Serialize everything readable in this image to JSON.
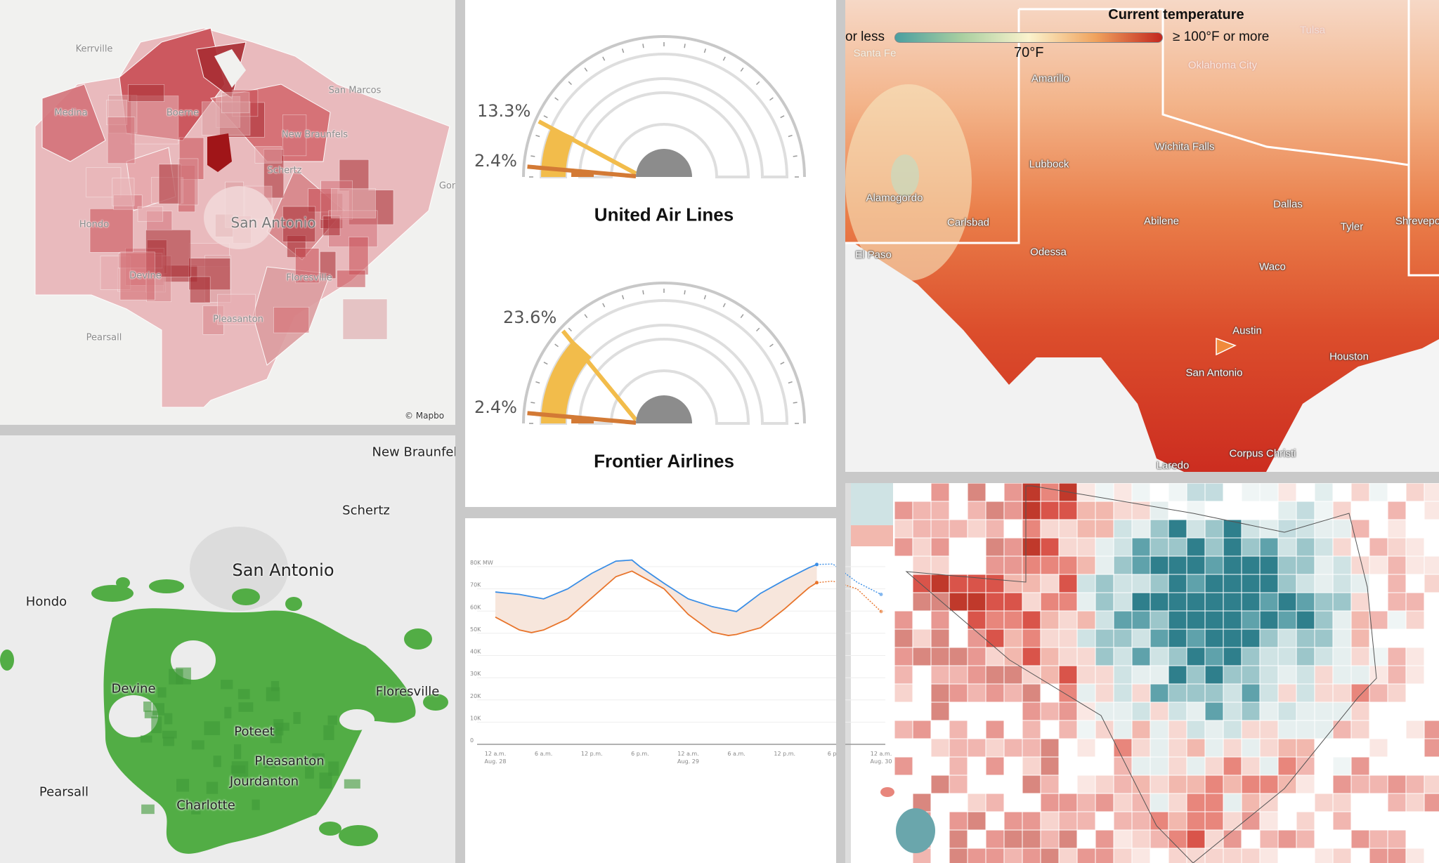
{
  "san_antonio_metro_map": {
    "labels": [
      "Kerrville",
      "Medina",
      "Boerne",
      "San Marcos",
      "New Braunfels",
      "Schertz",
      "San Antonio",
      "Hondo",
      "Devine",
      "Floresville",
      "Pleasanton",
      "Pearsall",
      "Gon"
    ],
    "attribution": "© Mapbo",
    "fill_color": "#c0393b"
  },
  "rain_map": {
    "labels": [
      "New Braunfel",
      "Schertz",
      "San Antonio",
      "Hondo",
      "Devine",
      "Floresville",
      "Poteet",
      "Pleasanton",
      "Jourdanton",
      "Charlotte",
      "Pearsall"
    ],
    "fill_color": "#4caf43"
  },
  "gauges": [
    {
      "title": "United Air Lines",
      "value_high": "13.3%",
      "value_low": "2.4%",
      "high": 13.3,
      "low": 2.4
    },
    {
      "title": "Frontier Airlines",
      "value_high": "23.6%",
      "value_low": "2.4%",
      "high": 23.6,
      "low": 2.4
    }
  ],
  "gauge_colors": {
    "high": "#f2bc4b",
    "low": "#d37a35",
    "hub": "#8c8c8c"
  },
  "chart_data": {
    "type": "line",
    "ylim": [
      0,
      80000
    ],
    "y_ticks": [
      "0",
      "10K",
      "20K",
      "30K",
      "40K",
      "50K",
      "60K",
      "70K",
      "80K MW"
    ],
    "y_tick_values": [
      0,
      10000,
      20000,
      30000,
      40000,
      50000,
      60000,
      70000,
      80000
    ],
    "x_ticks": [
      {
        "h": 0,
        "l1": "12 a.m.",
        "l2": "Aug. 28"
      },
      {
        "h": 6,
        "l1": "6 a.m.",
        "l2": ""
      },
      {
        "h": 12,
        "l1": "12 p.m.",
        "l2": ""
      },
      {
        "h": 18,
        "l1": "6 p.m.",
        "l2": ""
      },
      {
        "h": 24,
        "l1": "12 a.m.",
        "l2": "Aug. 29"
      },
      {
        "h": 30,
        "l1": "6 a.m.",
        "l2": ""
      },
      {
        "h": 36,
        "l1": "12 p.m.",
        "l2": ""
      },
      {
        "h": 42,
        "l1": "6 p.",
        "l2": ""
      },
      {
        "h": 48,
        "l1": "12 a.m.",
        "l2": "Aug. 30"
      }
    ],
    "series": [
      {
        "color": "#3a8ee6",
        "hours": [
          0,
          3,
          6,
          9,
          12,
          15,
          17,
          18,
          21,
          24,
          27,
          30,
          33,
          36,
          39,
          40
        ],
        "values": [
          68600,
          67500,
          65500,
          70000,
          77000,
          82500,
          83000,
          80000,
          72500,
          65500,
          62000,
          59800,
          68000,
          74000,
          79500,
          81000
        ],
        "forecast_hours": [
          40,
          42,
          45,
          48
        ],
        "forecast_values": [
          81000,
          81200,
          73000,
          67500
        ]
      },
      {
        "color": "#e8742b",
        "hours": [
          0,
          3,
          4.5,
          6,
          9,
          12,
          15,
          17,
          18,
          21,
          24,
          27,
          29,
          30,
          33,
          36,
          39,
          40
        ],
        "values": [
          57300,
          51500,
          50300,
          51500,
          56500,
          66000,
          75500,
          78000,
          76000,
          70000,
          58500,
          50500,
          49000,
          49500,
          52500,
          61000,
          70500,
          72800
        ],
        "forecast_hours": [
          40,
          42,
          45,
          48
        ],
        "forecast_values": [
          72800,
          73500,
          70000,
          59800
        ]
      }
    ],
    "band_color": "#f7e6dc"
  },
  "temperature_map": {
    "legend_title": "Current temperature",
    "legend_low": "or less",
    "legend_high": "≥ 100°F or more",
    "legend_mid": "70°F",
    "gradient": [
      "#4a9fa0",
      "#a9cfa0",
      "#fbf3cd",
      "#f0a35e",
      "#c3271f"
    ],
    "labels": [
      "Tulsa",
      "Santa Fe",
      "Oklahoma City",
      "Amarillo",
      "Wichita Falls",
      "Lubbock",
      "Alamogordo",
      "Carlsbad",
      "Abilene",
      "Dallas",
      "Tyler",
      "Shrevepo",
      "El Paso",
      "Odessa",
      "Waco",
      "Austin",
      "Houston",
      "San Antonio",
      "Corpus Christi",
      "Laredo"
    ]
  },
  "county_map": {
    "colors": {
      "red": "#d9544a",
      "pink": "#f2c3bb",
      "teal": "#2f7f8c",
      "light_teal": "#cfe3e4"
    }
  }
}
